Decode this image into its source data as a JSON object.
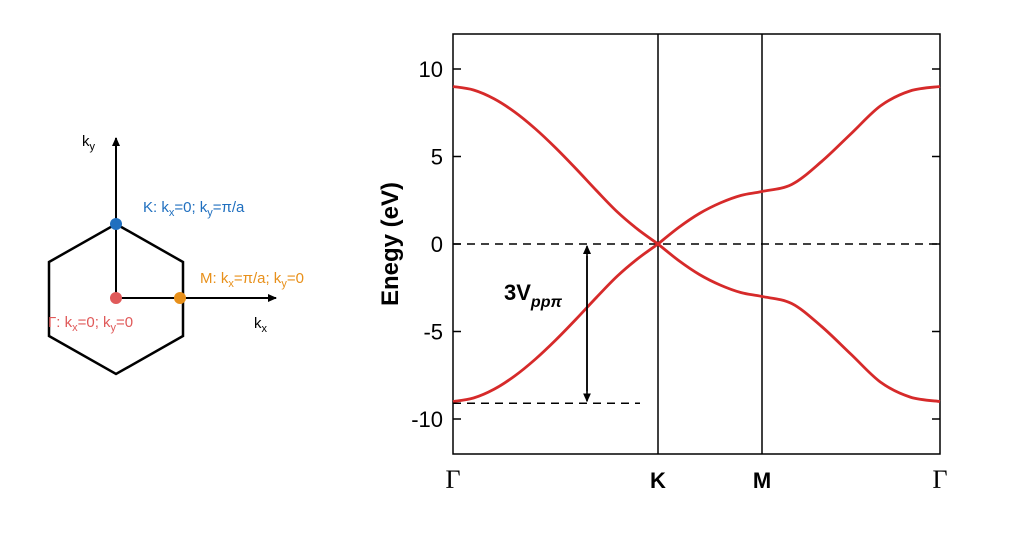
{
  "brillouin_zone": {
    "kx_label_main": "k",
    "kx_label_sub": "x",
    "ky_label_main": "k",
    "ky_label_sub": "y",
    "points": {
      "K": {
        "color": "#1f6fbf",
        "label": [
          {
            "t": "K: k"
          },
          {
            "t": "x",
            "sub": true
          },
          {
            "t": "=0; k"
          },
          {
            "t": "y",
            "sub": true
          },
          {
            "t": "=π/a"
          }
        ]
      },
      "M": {
        "color": "#e8901a",
        "label": [
          {
            "t": "M: k"
          },
          {
            "t": "x",
            "sub": true
          },
          {
            "t": "=π/a; k"
          },
          {
            "t": "y",
            "sub": true
          },
          {
            "t": "=0"
          }
        ]
      },
      "Gamma": {
        "color": "#e05a5a",
        "label": [
          {
            "t": "Γ: k"
          },
          {
            "t": "x",
            "sub": true
          },
          {
            "t": "=0; k"
          },
          {
            "t": "y",
            "sub": true
          },
          {
            "t": "=0"
          }
        ]
      }
    }
  },
  "chart_data": {
    "type": "line",
    "ylabel": "Enegy (eV)",
    "ylim": [
      -12,
      12
    ],
    "yticks": [
      -10,
      -5,
      0,
      5,
      10
    ],
    "high_symmetry_points": [
      {
        "label": "Γ",
        "style": "serif"
      },
      {
        "label": "K",
        "style": "bold"
      },
      {
        "label": "M",
        "style": "bold"
      },
      {
        "label": "Γ",
        "style": "serif"
      }
    ],
    "fermi_level": 0,
    "bandwidth_annotation": {
      "label_main": "3V",
      "label_sub": "ppπ",
      "from": 0,
      "to": -9.1
    },
    "series": [
      {
        "color": "#d62a2a",
        "values": [
          [
            0.0,
            9.0
          ],
          [
            0.05,
            8.8
          ],
          [
            0.1,
            8.3
          ],
          [
            0.15,
            7.55
          ],
          [
            0.2,
            6.6
          ],
          [
            0.25,
            5.5
          ],
          [
            0.3,
            4.3
          ],
          [
            0.35,
            3.05
          ],
          [
            0.4,
            1.85
          ],
          [
            0.45,
            0.85
          ],
          [
            0.5,
            0.0
          ],
          [
            0.55,
            0.95
          ],
          [
            0.6,
            1.75
          ],
          [
            0.65,
            2.35
          ],
          [
            0.7,
            2.78
          ],
          [
            0.75,
            3.0
          ],
          [
            0.8,
            3.4
          ],
          [
            0.85,
            4.7
          ],
          [
            0.9,
            6.3
          ],
          [
            0.95,
            7.9
          ],
          [
            1.0,
            8.75
          ],
          [
            1.05,
            9.0
          ]
        ]
      },
      {
        "color": "#d62a2a",
        "values": [
          [
            0.0,
            -9.0
          ],
          [
            0.05,
            -8.8
          ],
          [
            0.1,
            -8.3
          ],
          [
            0.15,
            -7.55
          ],
          [
            0.2,
            -6.6
          ],
          [
            0.25,
            -5.5
          ],
          [
            0.3,
            -4.3
          ],
          [
            0.35,
            -3.05
          ],
          [
            0.4,
            -1.85
          ],
          [
            0.45,
            -0.85
          ],
          [
            0.5,
            0.0
          ],
          [
            0.55,
            -0.95
          ],
          [
            0.6,
            -1.75
          ],
          [
            0.65,
            -2.35
          ],
          [
            0.7,
            -2.78
          ],
          [
            0.75,
            -3.0
          ],
          [
            0.8,
            -3.4
          ],
          [
            0.85,
            -4.7
          ],
          [
            0.9,
            -6.3
          ],
          [
            0.95,
            -7.9
          ],
          [
            1.0,
            -8.75
          ],
          [
            1.05,
            -9.0
          ]
        ]
      }
    ]
  }
}
